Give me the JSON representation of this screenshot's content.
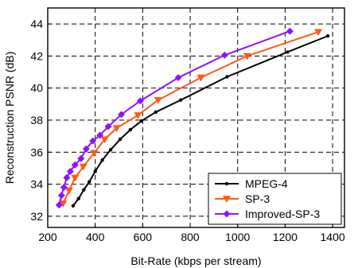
{
  "chart_data": {
    "type": "line",
    "xlabel": "Bit-Rate (kbps per stream)",
    "ylabel": "Reconstruction PSNR (dB)",
    "xlim": [
      200,
      1450
    ],
    "ylim": [
      31.3,
      45
    ],
    "xticks": [
      200,
      400,
      600,
      800,
      1000,
      1200,
      1400
    ],
    "yticks": [
      32,
      34,
      36,
      38,
      40,
      42,
      44
    ],
    "grid": true,
    "legend_position": "bottom-right",
    "series": [
      {
        "name": "MPEG-4",
        "color": "#000000",
        "marker": "dot",
        "x": [
          307,
          330,
          352,
          375,
          400,
          430,
          465,
          505,
          548,
          595,
          655,
          760,
          955,
          1210,
          1380
        ],
        "y": [
          32.65,
          33.1,
          33.65,
          34.15,
          34.8,
          35.5,
          36.15,
          36.8,
          37.4,
          37.95,
          38.5,
          39.25,
          40.7,
          42.25,
          43.25
        ]
      },
      {
        "name": "SP-3",
        "color": "#ff5a14",
        "marker": "triangle-down",
        "x": [
          265,
          290,
          315,
          350,
          395,
          440,
          490,
          580,
          665,
          845,
          1040,
          1340
        ],
        "y": [
          32.8,
          33.6,
          34.4,
          35.1,
          35.95,
          36.8,
          37.5,
          38.3,
          39.25,
          40.65,
          42.0,
          43.5
        ]
      },
      {
        "name": "Improved-SP-3",
        "color": "#8c14ff",
        "marker": "diamond",
        "x": [
          248,
          258,
          268,
          280,
          295,
          315,
          340,
          362,
          390,
          420,
          455,
          510,
          590,
          750,
          945,
          1220
        ],
        "y": [
          32.7,
          33.3,
          33.8,
          34.4,
          34.8,
          35.2,
          35.6,
          36.2,
          36.7,
          37.05,
          37.6,
          38.35,
          39.2,
          40.65,
          42.05,
          43.55
        ]
      }
    ]
  }
}
